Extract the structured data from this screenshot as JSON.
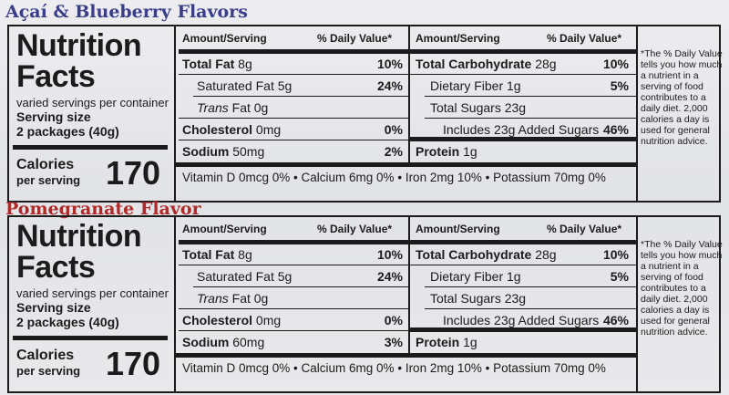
{
  "panels": [
    {
      "flavor": "Açaí & Blueberry Flavors",
      "flavor_color": "#3a3d8a",
      "title1": "Nutrition",
      "title2": "Facts",
      "servings": "varied servings per container",
      "serving_label": "Serving size",
      "serving_size": "2 packages (40g)",
      "calories_label": "Calories",
      "per_serving": "per serving",
      "calories": "170",
      "hdr_amount": "Amount/Serving",
      "hdr_dv": "% Daily Value*",
      "total_fat_b": "Total Fat",
      "total_fat_v": " 8g",
      "total_fat_p": "10%",
      "sat_fat": "Saturated Fat 5g",
      "sat_fat_p": "24%",
      "trans_i": "Trans",
      "trans_v": " Fat 0g",
      "chol_b": "Cholesterol",
      "chol_v": " 0mg",
      "chol_p": "0%",
      "sodium_b": "Sodium",
      "sodium_v": " 50mg",
      "sodium_p": "2%",
      "carb_b": "Total Carbohydrate",
      "carb_v": " 28g",
      "carb_p": "10%",
      "fiber": "Dietary Fiber 1g",
      "fiber_p": "5%",
      "sugars": "Total Sugars 23g",
      "added": "Includes 23g Added Sugars",
      "added_p": "46%",
      "protein_b": "Protein",
      "protein_v": " 1g",
      "vitd": "Vitamin D 0mcg 0%",
      "calcium": "Calcium 6mg 0%",
      "iron": "Iron 2mg 10%",
      "potassium": "Potassium 70mg 0%",
      "note": "*The % Daily Value tells you how much a nutrient in a serving of food contributes to a daily diet. 2,000 calories a day is used for general nutrition advice."
    },
    {
      "flavor": "Pomegranate Flavor",
      "flavor_color": "#b02a2a",
      "title1": "Nutrition",
      "title2": "Facts",
      "servings": "varied servings per container",
      "serving_label": "Serving size",
      "serving_size": "2 packages (40g)",
      "calories_label": "Calories",
      "per_serving": "per serving",
      "calories": "170",
      "hdr_amount": "Amount/Serving",
      "hdr_dv": "% Daily Value*",
      "total_fat_b": "Total Fat",
      "total_fat_v": " 8g",
      "total_fat_p": "10%",
      "sat_fat": "Saturated Fat 5g",
      "sat_fat_p": "24%",
      "trans_i": "Trans",
      "trans_v": " Fat 0g",
      "chol_b": "Cholesterol",
      "chol_v": " 0mg",
      "chol_p": "0%",
      "sodium_b": "Sodium",
      "sodium_v": " 60mg",
      "sodium_p": "3%",
      "carb_b": "Total Carbohydrate",
      "carb_v": " 28g",
      "carb_p": "10%",
      "fiber": "Dietary Fiber 1g",
      "fiber_p": "5%",
      "sugars": "Total Sugars 23g",
      "added": "Includes 23g Added Sugars",
      "added_p": "46%",
      "protein_b": "Protein",
      "protein_v": " 1g",
      "vitd": "Vitamin D 0mcg 0%",
      "calcium": "Calcium 6mg 0%",
      "iron": "Iron 2mg 10%",
      "potassium": "Potassium 70mg 0%",
      "note": "*The % Daily Value tells you how much a nutrient in a serving of food contributes to a daily diet. 2,000 calories a day is used for general nutrition advice."
    }
  ]
}
